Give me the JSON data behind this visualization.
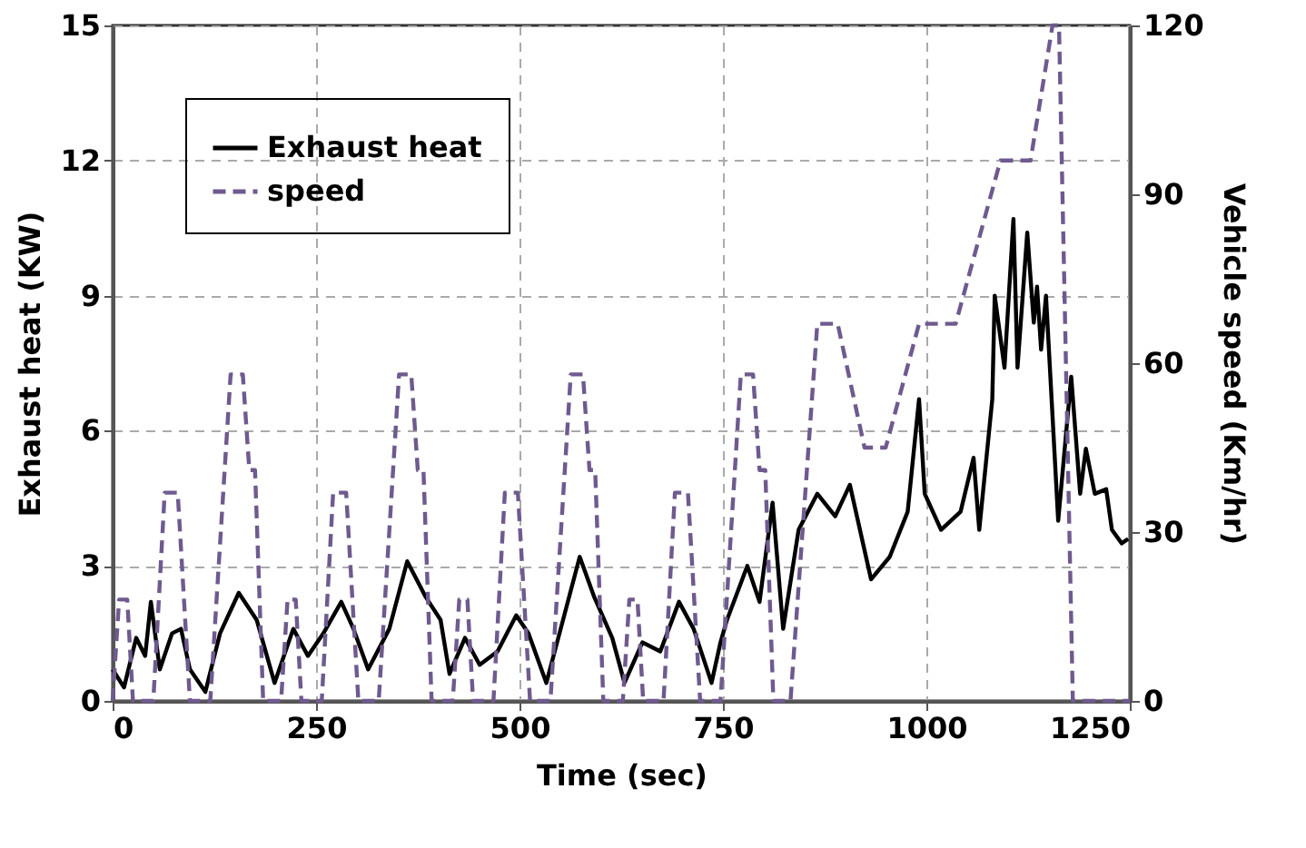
{
  "chart_data": {
    "type": "line",
    "xlabel": "Time (sec)",
    "ylabel": "Exhaust heat  (KW)",
    "y2label": "Vehicle speed (Km/hr)",
    "xlim": [
      0,
      1250
    ],
    "xticks": [
      0,
      250,
      500,
      750,
      1000,
      1250
    ],
    "ylim": [
      0,
      15
    ],
    "yticks": [
      0,
      3,
      6,
      9,
      12,
      15
    ],
    "y2lim": [
      0,
      120
    ],
    "y2ticks": [
      0,
      30,
      60,
      90,
      120
    ],
    "grid": true,
    "legend": "top left",
    "marker": "none",
    "series": [
      {
        "name": "Exhaust heat",
        "color": "#000000",
        "line_style": "solid",
        "x": [
          0,
          14,
          29,
          40,
          47,
          58,
          73,
          84,
          95,
          114,
          132,
          155,
          177,
          199,
          222,
          240,
          259,
          281,
          296,
          314,
          340,
          362,
          385,
          403,
          414,
          433,
          451,
          473,
          496,
          511,
          533,
          555,
          574,
          592,
          614,
          629,
          651,
          673,
          696,
          714,
          736,
          747,
          755,
          780,
          795,
          811,
          824,
          843,
          866,
          888,
          906,
          932,
          955,
          977,
          991,
          998,
          1018,
          1042,
          1058,
          1065,
          1081,
          1084,
          1096,
          1107,
          1112,
          1124,
          1132,
          1136,
          1141,
          1147,
          1162,
          1178,
          1189,
          1196,
          1207,
          1221,
          1228,
          1240,
          1248
        ],
        "values": [
          0.7,
          0.3,
          1.4,
          1.0,
          2.2,
          0.7,
          1.5,
          1.6,
          0.7,
          0.2,
          1.5,
          2.4,
          1.8,
          0.4,
          1.6,
          1.0,
          1.5,
          2.2,
          1.6,
          0.7,
          1.6,
          3.1,
          2.3,
          1.8,
          0.6,
          1.4,
          0.8,
          1.1,
          1.9,
          1.5,
          0.4,
          1.9,
          3.2,
          2.3,
          1.4,
          0.4,
          1.3,
          1.1,
          2.2,
          1.6,
          0.4,
          1.3,
          1.8,
          3.0,
          2.2,
          4.4,
          1.6,
          3.8,
          4.6,
          4.1,
          4.8,
          2.7,
          3.2,
          4.2,
          6.7,
          4.6,
          3.8,
          4.2,
          5.4,
          3.8,
          6.7,
          9.0,
          7.4,
          10.7,
          7.4,
          10.4,
          8.4,
          9.2,
          7.8,
          9.0,
          4.0,
          7.2,
          4.6,
          5.6,
          4.6,
          4.7,
          3.8,
          3.5,
          3.6
        ]
      },
      {
        "name": "speed",
        "color": "#6f5a8f",
        "line_style": "dashed",
        "axis": "y2",
        "x": [
          0,
          8,
          18,
          25,
          50,
          64,
          80,
          95,
          120,
          145,
          160,
          168,
          175,
          185,
          207,
          215,
          225,
          232,
          257,
          271,
          287,
          302,
          327,
          352,
          367,
          375,
          382,
          392,
          418,
          426,
          436,
          443,
          468,
          482,
          498,
          513,
          538,
          563,
          578,
          586,
          593,
          603,
          627,
          635,
          645,
          652,
          677,
          691,
          707,
          722,
          747,
          772,
          787,
          795,
          802,
          812,
          833,
          866,
          891,
          924,
          950,
          991,
          1036,
          1091,
          1128,
          1155,
          1163,
          1180,
          1250
        ],
        "values": [
          0,
          18,
          18,
          0,
          0,
          37,
          37,
          0,
          0,
          58,
          58,
          41,
          41,
          0,
          0,
          18,
          18,
          0,
          0,
          37,
          37,
          0,
          0,
          58,
          58,
          41,
          41,
          0,
          0,
          18,
          18,
          0,
          0,
          37,
          37,
          0,
          0,
          58,
          58,
          41,
          41,
          0,
          0,
          18,
          18,
          0,
          0,
          37,
          37,
          0,
          0,
          58,
          58,
          41,
          41,
          0,
          0,
          67,
          67,
          45,
          45,
          67,
          67,
          96,
          96,
          120,
          120,
          0,
          0
        ]
      }
    ]
  }
}
